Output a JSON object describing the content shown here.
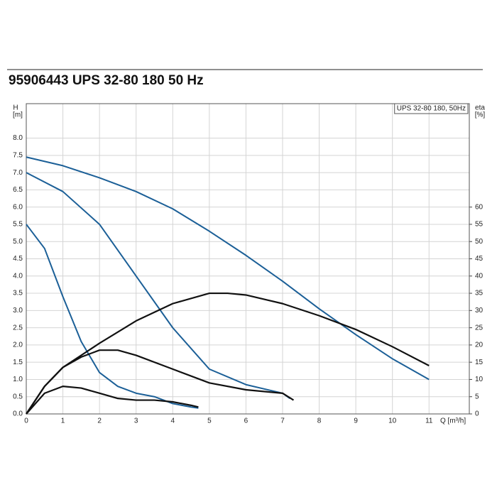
{
  "chart_data": {
    "type": "line",
    "title": "95906443 UPS 32-80 180 50 Hz",
    "legend_text": "UPS 32-80 180, 50Hz",
    "y_label": "H",
    "y_unit": "[m]",
    "y2_label": "eta",
    "y2_unit": "[%]",
    "x_label": "Q [m³/h]",
    "xlim": [
      0,
      12.1
    ],
    "xticks": [
      0,
      1,
      2,
      3,
      4,
      5,
      6,
      7,
      8,
      9,
      10,
      11
    ],
    "ylim": [
      0,
      9
    ],
    "yticks": [
      {
        "value": 0,
        "label": "0.0"
      },
      {
        "value": 0.5,
        "label": "0.5"
      },
      {
        "value": 1,
        "label": "1.0"
      },
      {
        "value": 1.5,
        "label": "1.5"
      },
      {
        "value": 2,
        "label": "2.0"
      },
      {
        "value": 2.5,
        "label": "2.5"
      },
      {
        "value": 3,
        "label": "3.0"
      },
      {
        "value": 3.5,
        "label": "3.5"
      },
      {
        "value": 4,
        "label": "4.0"
      },
      {
        "value": 4.5,
        "label": "4.5"
      },
      {
        "value": 5,
        "label": "5.0"
      },
      {
        "value": 5.5,
        "label": "5.5"
      },
      {
        "value": 6,
        "label": "6.0"
      },
      {
        "value": 6.5,
        "label": "6.5"
      },
      {
        "value": 7,
        "label": "7.0"
      },
      {
        "value": 7.5,
        "label": "7.5"
      },
      {
        "value": 8,
        "label": "8.0"
      }
    ],
    "y2lim": [
      0,
      90
    ],
    "y2ticks": [
      0,
      5,
      10,
      15,
      20,
      25,
      30,
      35,
      40,
      45,
      50,
      55,
      60
    ],
    "grid": true,
    "series": [
      {
        "color": "#1b5f97",
        "axis": "y",
        "x": [
          0,
          1,
          2,
          3,
          4,
          5,
          6,
          7,
          8,
          9,
          10,
          11
        ],
        "values": [
          7.45,
          7.2,
          6.85,
          6.45,
          5.95,
          5.3,
          4.6,
          3.85,
          3.05,
          2.3,
          1.6,
          1.0
        ]
      },
      {
        "color": "#1b5f97",
        "axis": "y",
        "x": [
          0,
          1,
          2,
          3,
          4,
          5,
          6,
          7,
          7.2
        ],
        "values": [
          7.0,
          6.45,
          5.5,
          4.0,
          2.5,
          1.3,
          0.85,
          0.6,
          0.45
        ]
      },
      {
        "color": "#1b5f97",
        "axis": "y",
        "x": [
          0,
          0.5,
          1,
          1.5,
          2,
          2.5,
          3,
          3.5,
          4,
          4.5,
          4.7
        ],
        "values": [
          5.5,
          4.8,
          3.4,
          2.1,
          1.2,
          0.8,
          0.6,
          0.5,
          0.3,
          0.2,
          0.17
        ]
      },
      {
        "color": "#111111",
        "axis": "y2",
        "x": [
          0,
          0.5,
          1,
          2,
          3,
          4,
          5,
          5.5,
          6,
          7,
          8,
          9,
          10,
          11
        ],
        "values": [
          0,
          8,
          13.5,
          20.5,
          27,
          32,
          35,
          35,
          34.5,
          32,
          28.5,
          24.5,
          19.5,
          14
        ]
      },
      {
        "color": "#111111",
        "axis": "y2",
        "x": [
          0,
          0.5,
          1,
          1.5,
          2,
          2.5,
          3,
          4,
          5,
          6,
          7,
          7.3
        ],
        "values": [
          0,
          8,
          13.5,
          16.5,
          18.5,
          18.5,
          17,
          13,
          9,
          7,
          6,
          4
        ]
      },
      {
        "color": "#111111",
        "axis": "y2",
        "x": [
          0,
          0.5,
          1,
          1.5,
          2,
          2.5,
          3,
          3.5,
          4,
          4.5,
          4.7
        ],
        "values": [
          0,
          6,
          8,
          7.5,
          6,
          4.5,
          4,
          4,
          3.5,
          2.5,
          2
        ]
      }
    ]
  }
}
